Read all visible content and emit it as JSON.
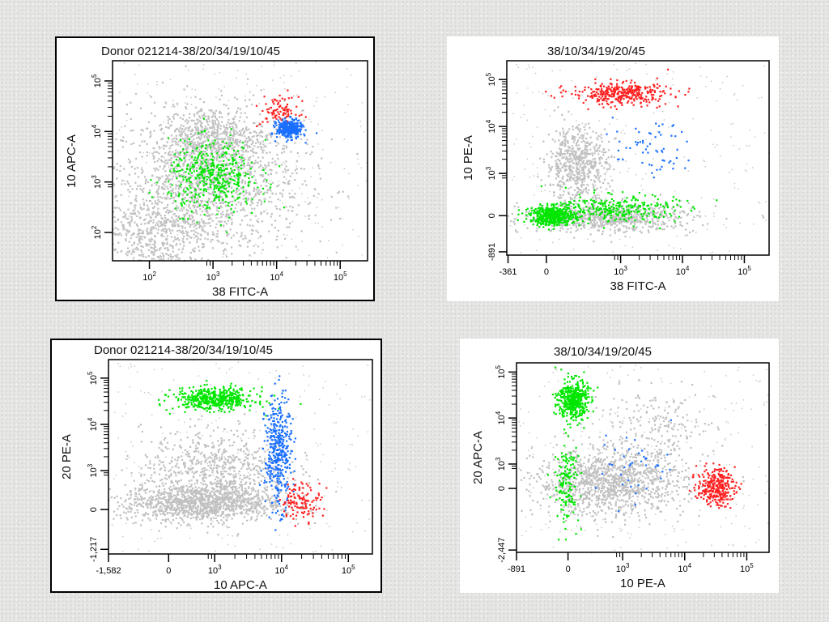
{
  "chart_data": [
    {
      "type": "scatter",
      "title": "Donor 021214-38/20/34/19/10/45",
      "xlabel": "38 FITC-A",
      "ylabel": "10 APC-A",
      "xaxis": {
        "range": [
          1.42,
          5.43
        ],
        "ticks": [
          {
            "v": 2,
            "label": "10",
            "exp": "2"
          },
          {
            "v": 3,
            "label": "10",
            "exp": "3"
          },
          {
            "v": 4,
            "label": "10",
            "exp": "4"
          },
          {
            "v": 5,
            "label": "10",
            "exp": "5"
          }
        ]
      },
      "yaxis": {
        "range": [
          1.44,
          5.4
        ],
        "ticks": [
          {
            "v": 2,
            "label": "10",
            "exp": "2"
          },
          {
            "v": 3,
            "label": "10",
            "exp": "3"
          },
          {
            "v": 4,
            "label": "10",
            "exp": "4"
          },
          {
            "v": 5,
            "label": "10",
            "exp": "5"
          }
        ]
      },
      "populations": [
        {
          "color": "#c0c0c0",
          "center": [
            2.9,
            3.0
          ],
          "spread": [
            0.75,
            0.7
          ],
          "n": 1500
        },
        {
          "color": "#c0c0c0",
          "center": [
            3.0,
            3.9
          ],
          "spread": [
            0.4,
            0.3
          ],
          "n": 500
        },
        {
          "color": "#c0c0c0",
          "center": [
            2.0,
            2.0
          ],
          "spread": [
            0.5,
            0.4
          ],
          "n": 500
        },
        {
          "color": "#00e600",
          "center": [
            3.0,
            3.1
          ],
          "spread": [
            0.35,
            0.35
          ],
          "n": 450
        },
        {
          "color": "#ff2020",
          "center": [
            4.05,
            4.4
          ],
          "spread": [
            0.15,
            0.15
          ],
          "n": 90
        },
        {
          "color": "#1a6fff",
          "center": [
            4.2,
            4.05
          ],
          "spread": [
            0.1,
            0.09
          ],
          "n": 350
        }
      ]
    },
    {
      "type": "scatter",
      "title": "38/10/34/19/20/45",
      "xlabel": "38 FITC-A",
      "ylabel": "10 PE-A",
      "xaxis": {
        "range": [
          1.16,
          5.4
        ],
        "ticks": [
          {
            "v": 1.18,
            "label": "-361",
            "exp": ""
          },
          {
            "v": 1.8,
            "label": "0",
            "exp": ""
          },
          {
            "v": 3,
            "label": "10",
            "exp": "3"
          },
          {
            "v": 4,
            "label": "10",
            "exp": "4"
          },
          {
            "v": 5,
            "label": "10",
            "exp": "5"
          }
        ]
      },
      "yaxis": {
        "range": [
          1.26,
          5.4
        ],
        "ticks": [
          {
            "v": 1.33,
            "label": "-891",
            "exp": ""
          },
          {
            "v": 2.1,
            "label": "0",
            "exp": ""
          },
          {
            "v": 3,
            "label": "10",
            "exp": "3"
          },
          {
            "v": 4,
            "label": "10",
            "exp": "4"
          },
          {
            "v": 5,
            "label": "10",
            "exp": "5"
          }
        ]
      },
      "populations": [
        {
          "color": "#c0c0c0",
          "center": [
            2.3,
            3.2
          ],
          "spread": [
            0.25,
            0.4
          ],
          "n": 600
        },
        {
          "color": "#c0c0c0",
          "center": [
            2.8,
            2.05
          ],
          "spread": [
            0.7,
            0.15
          ],
          "n": 700
        },
        {
          "color": "#00e600",
          "center": [
            1.9,
            2.1
          ],
          "spread": [
            0.18,
            0.1
          ],
          "n": 500
        },
        {
          "color": "#00e600",
          "center": [
            2.9,
            2.25
          ],
          "spread": [
            0.5,
            0.15
          ],
          "n": 300
        },
        {
          "color": "#ff2020",
          "center": [
            3.0,
            4.7
          ],
          "spread": [
            0.4,
            0.12
          ],
          "n": 350
        },
        {
          "color": "#1a6fff",
          "center": [
            3.5,
            3.5
          ],
          "spread": [
            0.3,
            0.3
          ],
          "n": 60
        }
      ]
    },
    {
      "type": "scatter",
      "title": "Donor 021214-38/20/34/19/10/45",
      "xlabel": "10 APC-A",
      "ylabel": "20 PE-A",
      "xaxis": {
        "range": [
          1.41,
          5.36
        ],
        "ticks": [
          {
            "v": 1.41,
            "label": "-1,582",
            "exp": ""
          },
          {
            "v": 2.31,
            "label": "0",
            "exp": ""
          },
          {
            "v": 3,
            "label": "10",
            "exp": "3"
          },
          {
            "v": 4,
            "label": "10",
            "exp": "4"
          },
          {
            "v": 5,
            "label": "10",
            "exp": "5"
          }
        ]
      },
      "yaxis": {
        "range": [
          1.2,
          5.4
        ],
        "ticks": [
          {
            "v": 1.3,
            "label": "-1,217",
            "exp": ""
          },
          {
            "v": 2.16,
            "label": "0",
            "exp": ""
          },
          {
            "v": 3,
            "label": "10",
            "exp": "3"
          },
          {
            "v": 4,
            "label": "10",
            "exp": "4"
          },
          {
            "v": 5,
            "label": "10",
            "exp": "5"
          }
        ]
      },
      "populations": [
        {
          "color": "#c0c0c0",
          "center": [
            2.8,
            2.3
          ],
          "spread": [
            0.6,
            0.2
          ],
          "n": 1100
        },
        {
          "color": "#c0c0c0",
          "center": [
            3.0,
            3.0
          ],
          "spread": [
            0.55,
            0.45
          ],
          "n": 700
        },
        {
          "color": "#00e600",
          "center": [
            3.0,
            4.55
          ],
          "spread": [
            0.3,
            0.12
          ],
          "n": 500
        },
        {
          "color": "#1a6fff",
          "center": [
            3.95,
            3.4
          ],
          "spread": [
            0.1,
            0.6
          ],
          "n": 400
        },
        {
          "color": "#ff2020",
          "center": [
            4.3,
            2.35
          ],
          "spread": [
            0.15,
            0.2
          ],
          "n": 120
        }
      ]
    },
    {
      "type": "scatter",
      "title": "38/10/34/19/20/45",
      "xlabel": "10 PE-A",
      "ylabel": "20 APC-A",
      "xaxis": {
        "range": [
          1.29,
          5.36
        ],
        "ticks": [
          {
            "v": 1.29,
            "label": "-891",
            "exp": ""
          },
          {
            "v": 2.12,
            "label": "0",
            "exp": ""
          },
          {
            "v": 3,
            "label": "10",
            "exp": "3"
          },
          {
            "v": 4,
            "label": "10",
            "exp": "4"
          },
          {
            "v": 5,
            "label": "10",
            "exp": "5"
          }
        ]
      },
      "yaxis": {
        "range": [
          1.08,
          5.2
        ],
        "ticks": [
          {
            "v": 1.13,
            "label": "-2,447",
            "exp": ""
          },
          {
            "v": 2.47,
            "label": "0",
            "exp": ""
          },
          {
            "v": 3,
            "label": "10",
            "exp": "3"
          },
          {
            "v": 4,
            "label": "10",
            "exp": "4"
          },
          {
            "v": 5,
            "label": "10",
            "exp": "5"
          }
        ]
      },
      "populations": [
        {
          "color": "#c0c0c0",
          "center": [
            2.8,
            2.6
          ],
          "spread": [
            0.6,
            0.35
          ],
          "n": 1200
        },
        {
          "color": "#c0c0c0",
          "center": [
            3.5,
            3.8
          ],
          "spread": [
            0.5,
            0.4
          ],
          "n": 200
        },
        {
          "color": "#00e600",
          "center": [
            2.2,
            4.4
          ],
          "spread": [
            0.12,
            0.22
          ],
          "n": 450
        },
        {
          "color": "#00e600",
          "center": [
            2.1,
            2.6
          ],
          "spread": [
            0.1,
            0.45
          ],
          "n": 150
        },
        {
          "color": "#ff2020",
          "center": [
            4.5,
            2.5
          ],
          "spread": [
            0.15,
            0.2
          ],
          "n": 300
        },
        {
          "color": "#1a6fff",
          "center": [
            3.2,
            3.0
          ],
          "spread": [
            0.3,
            0.4
          ],
          "n": 40
        }
      ]
    }
  ]
}
